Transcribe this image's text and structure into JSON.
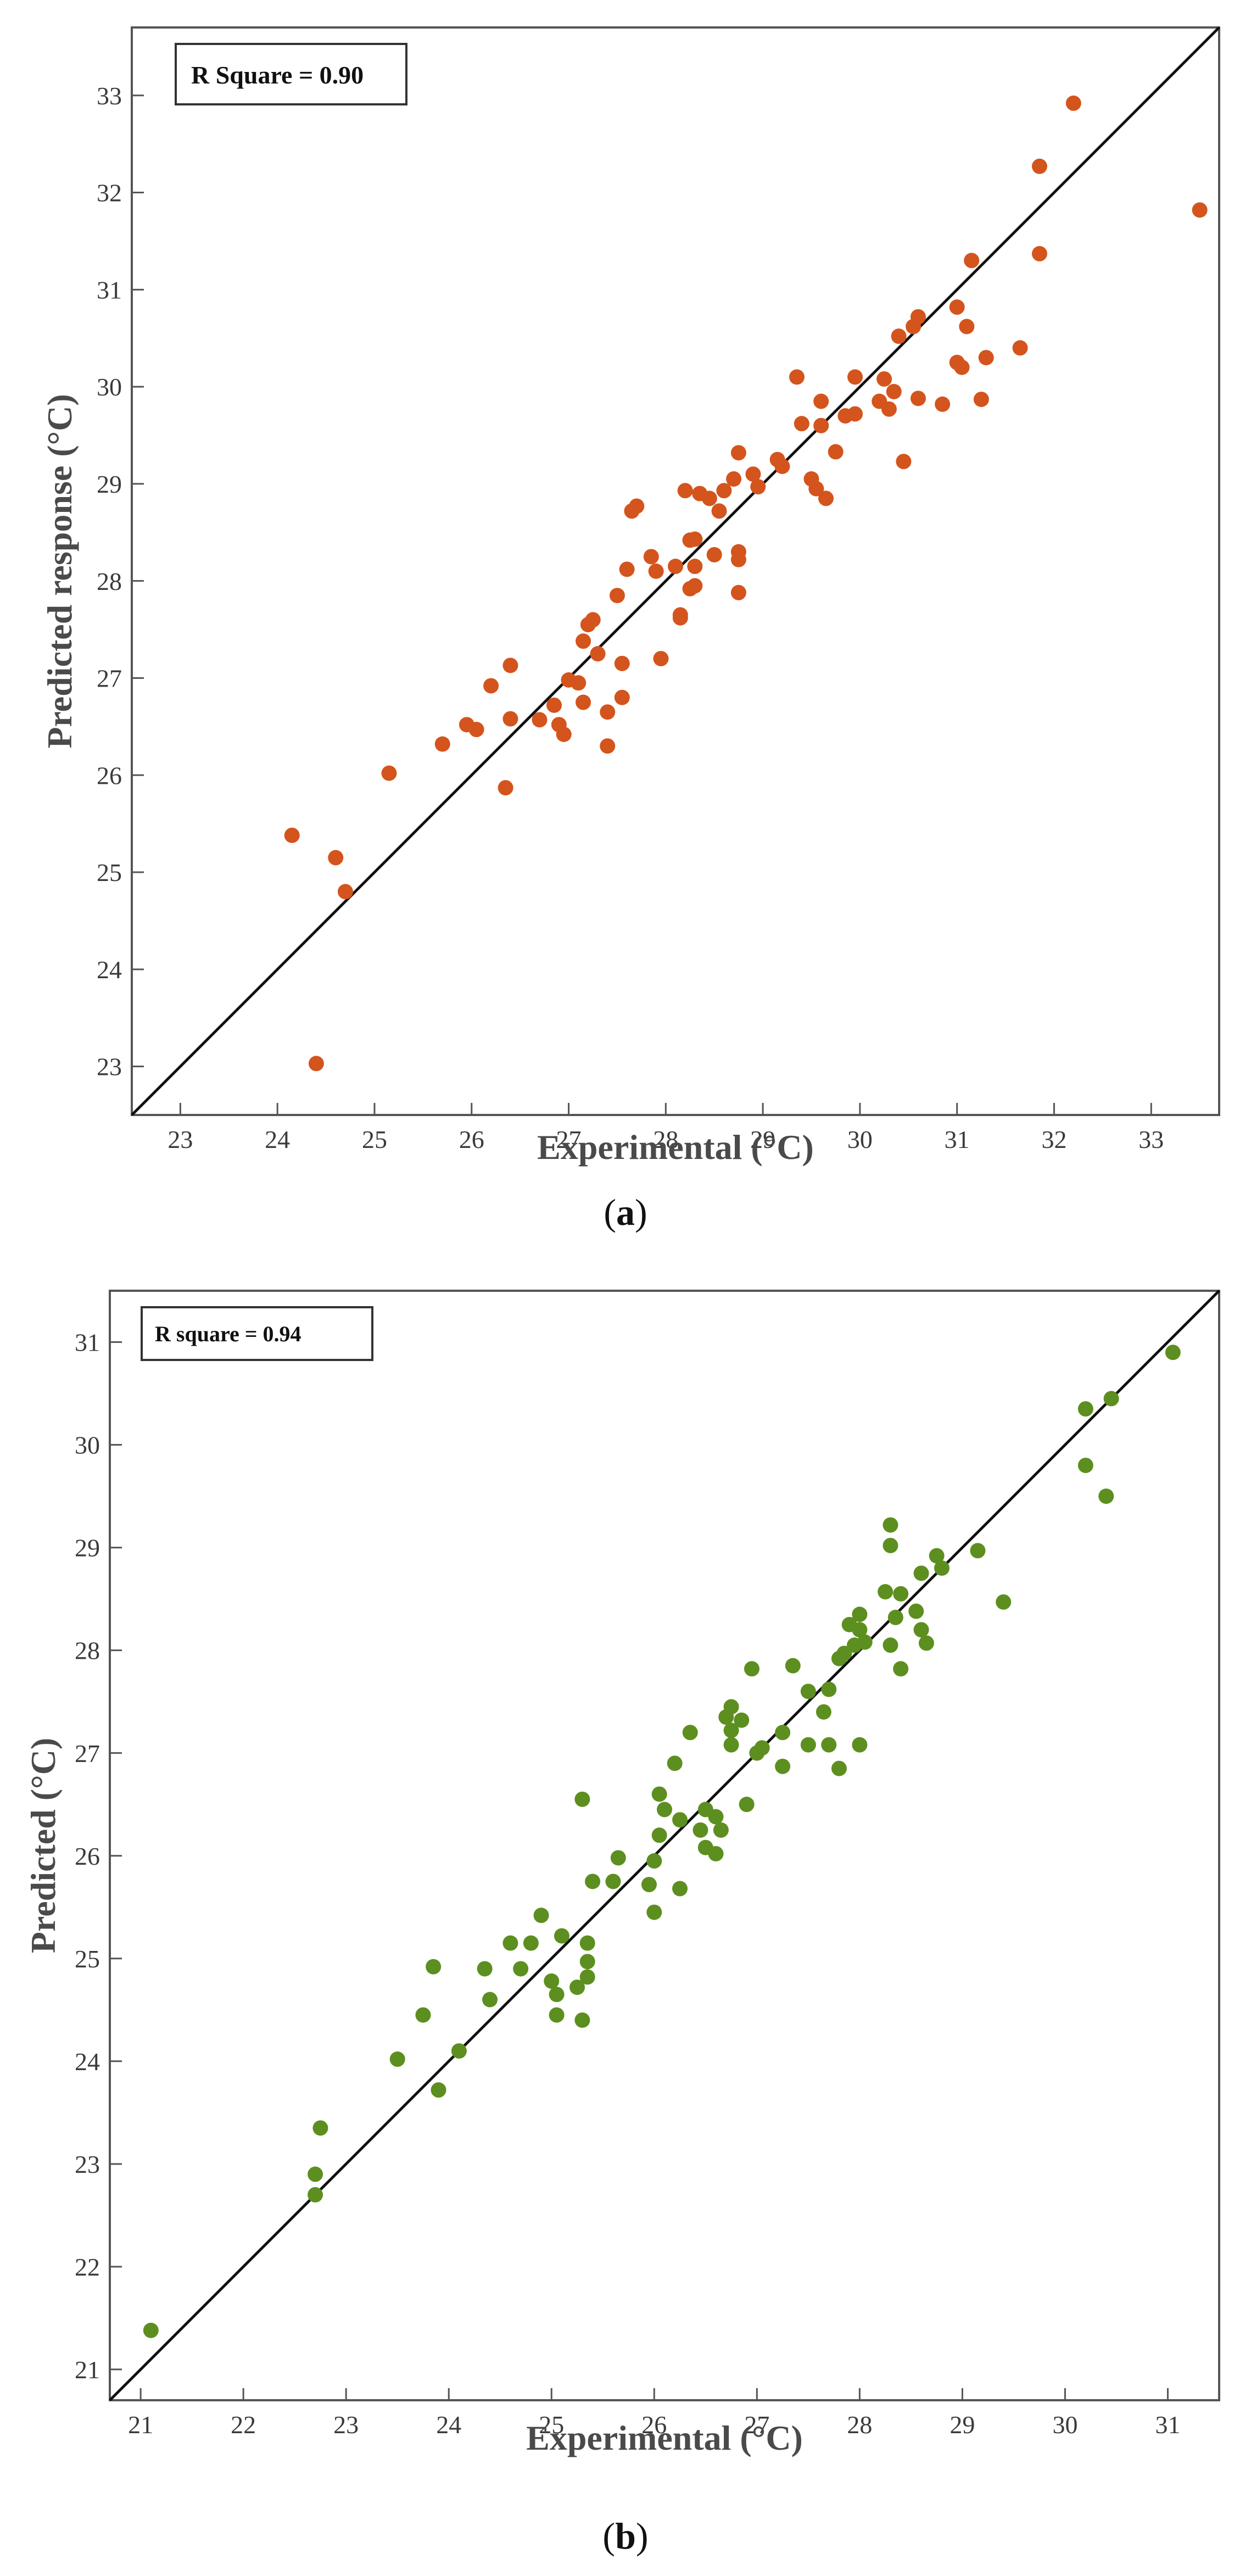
{
  "chart_data": [
    {
      "type": "scatter",
      "panel_label": "a",
      "annotation": "R Square = 0.90",
      "xlabel": "Experimental (°C)",
      "ylabel": "Predicted response (°C)",
      "xlim": [
        22.5,
        33.7
      ],
      "ylim": [
        22.5,
        33.7
      ],
      "xticks": [
        23,
        24,
        25,
        26,
        27,
        28,
        29,
        30,
        31,
        32,
        33
      ],
      "yticks": [
        23,
        24,
        25,
        26,
        27,
        28,
        29,
        30,
        31,
        32,
        33
      ],
      "color": "#d4541d",
      "reference_line": "y = x",
      "points": [
        [
          24.15,
          25.38
        ],
        [
          24.6,
          25.15
        ],
        [
          24.7,
          24.8
        ],
        [
          24.4,
          23.03
        ],
        [
          25.15,
          26.02
        ],
        [
          25.7,
          26.32
        ],
        [
          25.95,
          26.52
        ],
        [
          26.05,
          26.47
        ],
        [
          26.2,
          26.92
        ],
        [
          26.4,
          27.13
        ],
        [
          26.4,
          26.58
        ],
        [
          26.35,
          25.87
        ],
        [
          26.7,
          26.57
        ],
        [
          26.85,
          26.72
        ],
        [
          26.9,
          26.52
        ],
        [
          26.95,
          26.42
        ],
        [
          27.0,
          26.98
        ],
        [
          27.1,
          26.95
        ],
        [
          27.15,
          27.38
        ],
        [
          27.2,
          27.55
        ],
        [
          27.25,
          27.6
        ],
        [
          27.15,
          26.75
        ],
        [
          27.3,
          27.25
        ],
        [
          27.4,
          26.65
        ],
        [
          27.4,
          26.3
        ],
        [
          27.5,
          27.85
        ],
        [
          27.55,
          27.15
        ],
        [
          27.55,
          26.8
        ],
        [
          27.6,
          28.12
        ],
        [
          27.65,
          28.72
        ],
        [
          27.7,
          28.77
        ],
        [
          27.85,
          28.25
        ],
        [
          27.9,
          28.1
        ],
        [
          27.95,
          27.2
        ],
        [
          28.1,
          28.15
        ],
        [
          28.15,
          27.65
        ],
        [
          28.15,
          27.62
        ],
        [
          28.2,
          28.93
        ],
        [
          28.25,
          28.42
        ],
        [
          28.25,
          27.92
        ],
        [
          28.3,
          28.43
        ],
        [
          28.3,
          28.15
        ],
        [
          28.3,
          27.95
        ],
        [
          28.35,
          28.9
        ],
        [
          28.45,
          28.85
        ],
        [
          28.5,
          28.27
        ],
        [
          28.55,
          28.72
        ],
        [
          28.6,
          28.93
        ],
        [
          28.7,
          29.05
        ],
        [
          28.75,
          29.32
        ],
        [
          28.75,
          28.3
        ],
        [
          28.75,
          28.22
        ],
        [
          28.75,
          27.88
        ],
        [
          28.9,
          29.1
        ],
        [
          28.95,
          28.97
        ],
        [
          29.15,
          29.25
        ],
        [
          29.2,
          29.18
        ],
        [
          29.35,
          30.1
        ],
        [
          29.4,
          29.62
        ],
        [
          29.5,
          29.05
        ],
        [
          29.55,
          28.95
        ],
        [
          29.6,
          29.6
        ],
        [
          29.6,
          29.85
        ],
        [
          29.65,
          28.85
        ],
        [
          29.75,
          29.33
        ],
        [
          29.85,
          29.7
        ],
        [
          29.95,
          29.72
        ],
        [
          29.95,
          30.1
        ],
        [
          30.2,
          29.85
        ],
        [
          30.25,
          30.08
        ],
        [
          30.3,
          29.77
        ],
        [
          30.35,
          29.95
        ],
        [
          30.4,
          30.52
        ],
        [
          30.45,
          29.23
        ],
        [
          30.55,
          30.62
        ],
        [
          30.6,
          29.88
        ],
        [
          30.6,
          30.72
        ],
        [
          30.85,
          29.82
        ],
        [
          31.0,
          30.25
        ],
        [
          31.0,
          30.82
        ],
        [
          31.05,
          30.2
        ],
        [
          31.1,
          30.62
        ],
        [
          31.15,
          31.3
        ],
        [
          31.25,
          29.87
        ],
        [
          31.3,
          30.3
        ],
        [
          31.65,
          30.4
        ],
        [
          31.85,
          31.37
        ],
        [
          31.85,
          32.27
        ],
        [
          32.2,
          32.92
        ],
        [
          33.5,
          31.82
        ]
      ]
    },
    {
      "type": "scatter",
      "panel_label": "b",
      "annotation": "R square = 0.94",
      "xlabel": "Experimental (°C)",
      "ylabel": "Predicted (°C)",
      "xlim": [
        20.7,
        31.5
      ],
      "ylim": [
        20.7,
        31.5
      ],
      "xticks": [
        21,
        22,
        23,
        24,
        25,
        26,
        27,
        28,
        29,
        30,
        31
      ],
      "yticks": [
        21,
        22,
        23,
        24,
        25,
        26,
        27,
        28,
        29,
        30,
        31
      ],
      "color": "#5c8f1f",
      "reference_line": "y = x",
      "points": [
        [
          21.1,
          21.38
        ],
        [
          22.7,
          22.9
        ],
        [
          22.7,
          22.7
        ],
        [
          22.75,
          23.35
        ],
        [
          23.5,
          24.02
        ],
        [
          23.75,
          24.45
        ],
        [
          23.85,
          24.92
        ],
        [
          23.9,
          23.72
        ],
        [
          24.1,
          24.1
        ],
        [
          24.35,
          24.9
        ],
        [
          24.4,
          24.6
        ],
        [
          24.6,
          25.15
        ],
        [
          24.7,
          24.9
        ],
        [
          24.8,
          25.15
        ],
        [
          24.9,
          25.42
        ],
        [
          25.0,
          24.78
        ],
        [
          25.05,
          24.45
        ],
        [
          25.05,
          24.65
        ],
        [
          25.1,
          25.22
        ],
        [
          25.25,
          24.72
        ],
        [
          25.3,
          24.4
        ],
        [
          25.3,
          26.55
        ],
        [
          25.35,
          25.15
        ],
        [
          25.35,
          24.97
        ],
        [
          25.35,
          24.82
        ],
        [
          25.4,
          25.75
        ],
        [
          25.6,
          25.75
        ],
        [
          25.65,
          25.98
        ],
        [
          25.95,
          25.72
        ],
        [
          26.0,
          25.95
        ],
        [
          26.0,
          25.45
        ],
        [
          26.05,
          26.2
        ],
        [
          26.05,
          26.6
        ],
        [
          26.1,
          26.45
        ],
        [
          26.2,
          26.9
        ],
        [
          26.25,
          25.68
        ],
        [
          26.25,
          26.35
        ],
        [
          26.35,
          27.2
        ],
        [
          26.45,
          26.25
        ],
        [
          26.5,
          26.45
        ],
        [
          26.5,
          26.08
        ],
        [
          26.6,
          26.38
        ],
        [
          26.6,
          26.02
        ],
        [
          26.65,
          26.25
        ],
        [
          26.7,
          27.35
        ],
        [
          26.75,
          27.45
        ],
        [
          26.75,
          27.22
        ],
        [
          26.75,
          27.08
        ],
        [
          26.85,
          27.32
        ],
        [
          26.9,
          26.5
        ],
        [
          26.95,
          27.82
        ],
        [
          27.0,
          27.0
        ],
        [
          27.05,
          27.05
        ],
        [
          27.25,
          27.2
        ],
        [
          27.25,
          26.87
        ],
        [
          27.35,
          27.85
        ],
        [
          27.5,
          27.6
        ],
        [
          27.5,
          27.08
        ],
        [
          27.65,
          27.4
        ],
        [
          27.7,
          27.62
        ],
        [
          27.7,
          27.08
        ],
        [
          27.8,
          27.92
        ],
        [
          27.8,
          26.85
        ],
        [
          27.85,
          27.97
        ],
        [
          27.9,
          28.25
        ],
        [
          27.95,
          28.05
        ],
        [
          28.0,
          28.35
        ],
        [
          28.0,
          28.2
        ],
        [
          28.0,
          27.08
        ],
        [
          28.05,
          28.08
        ],
        [
          28.25,
          28.57
        ],
        [
          28.3,
          29.22
        ],
        [
          28.3,
          29.02
        ],
        [
          28.3,
          28.05
        ],
        [
          28.35,
          28.32
        ],
        [
          28.4,
          28.55
        ],
        [
          28.4,
          27.82
        ],
        [
          28.55,
          28.38
        ],
        [
          28.6,
          28.75
        ],
        [
          28.6,
          28.2
        ],
        [
          28.65,
          28.07
        ],
        [
          28.75,
          28.92
        ],
        [
          28.8,
          28.8
        ],
        [
          29.15,
          28.97
        ],
        [
          29.4,
          28.47
        ],
        [
          30.2,
          30.35
        ],
        [
          30.2,
          29.8
        ],
        [
          30.4,
          29.5
        ],
        [
          30.45,
          30.45
        ],
        [
          31.05,
          30.9
        ]
      ]
    }
  ]
}
